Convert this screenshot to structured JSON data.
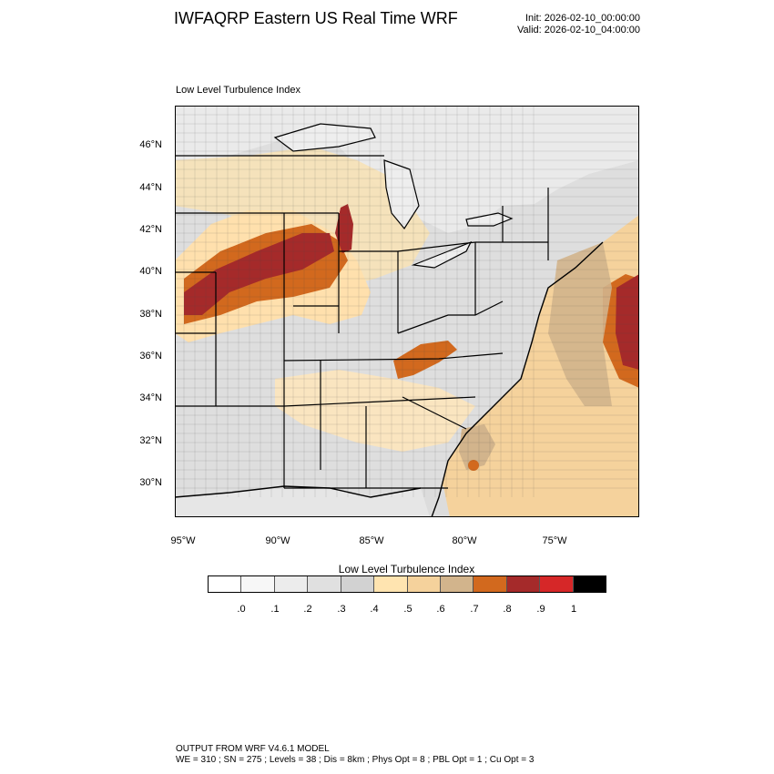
{
  "header": {
    "title": "IWFAQRP Eastern US Real Time WRF",
    "init": "Init: 2026-02-10_00:00:00",
    "valid": "Valid: 2026-02-10_04:00:00"
  },
  "panel": {
    "label": "Low Level Turbulence Index",
    "lat_ticks": [
      "46°N",
      "44°N",
      "42°N",
      "40°N",
      "38°N",
      "36°N",
      "34°N",
      "32°N",
      "30°N"
    ],
    "lon_ticks": [
      "95°W",
      "90°W",
      "85°W",
      "80°W",
      "75°W"
    ]
  },
  "colorbar": {
    "title": "Low Level Turbulence Index",
    "colors": [
      "#ffffff",
      "#f7f7f7",
      "#ececec",
      "#e0e0e0",
      "#d2d2d2",
      "#ffe4b0",
      "#f5d29c",
      "#d2b48c",
      "#d2691e",
      "#a52a2a",
      "#d62728",
      "#000000"
    ],
    "labels": [
      ".0",
      ".1",
      ".2",
      ".3",
      ".4",
      ".5",
      ".6",
      ".7",
      ".8",
      ".9",
      "1"
    ]
  },
  "map": {
    "land_color": "#dcdcdc",
    "water_color": "#eeeeee",
    "border_color": "#000000"
  },
  "footer": {
    "line1": "OUTPUT FROM WRF V4.6.1 MODEL",
    "line2": "WE = 310 ; SN = 275 ; Levels = 38 ; Dis = 8km ; Phys Opt = 8 ; PBL Opt = 1 ; Cu Opt = 3"
  }
}
